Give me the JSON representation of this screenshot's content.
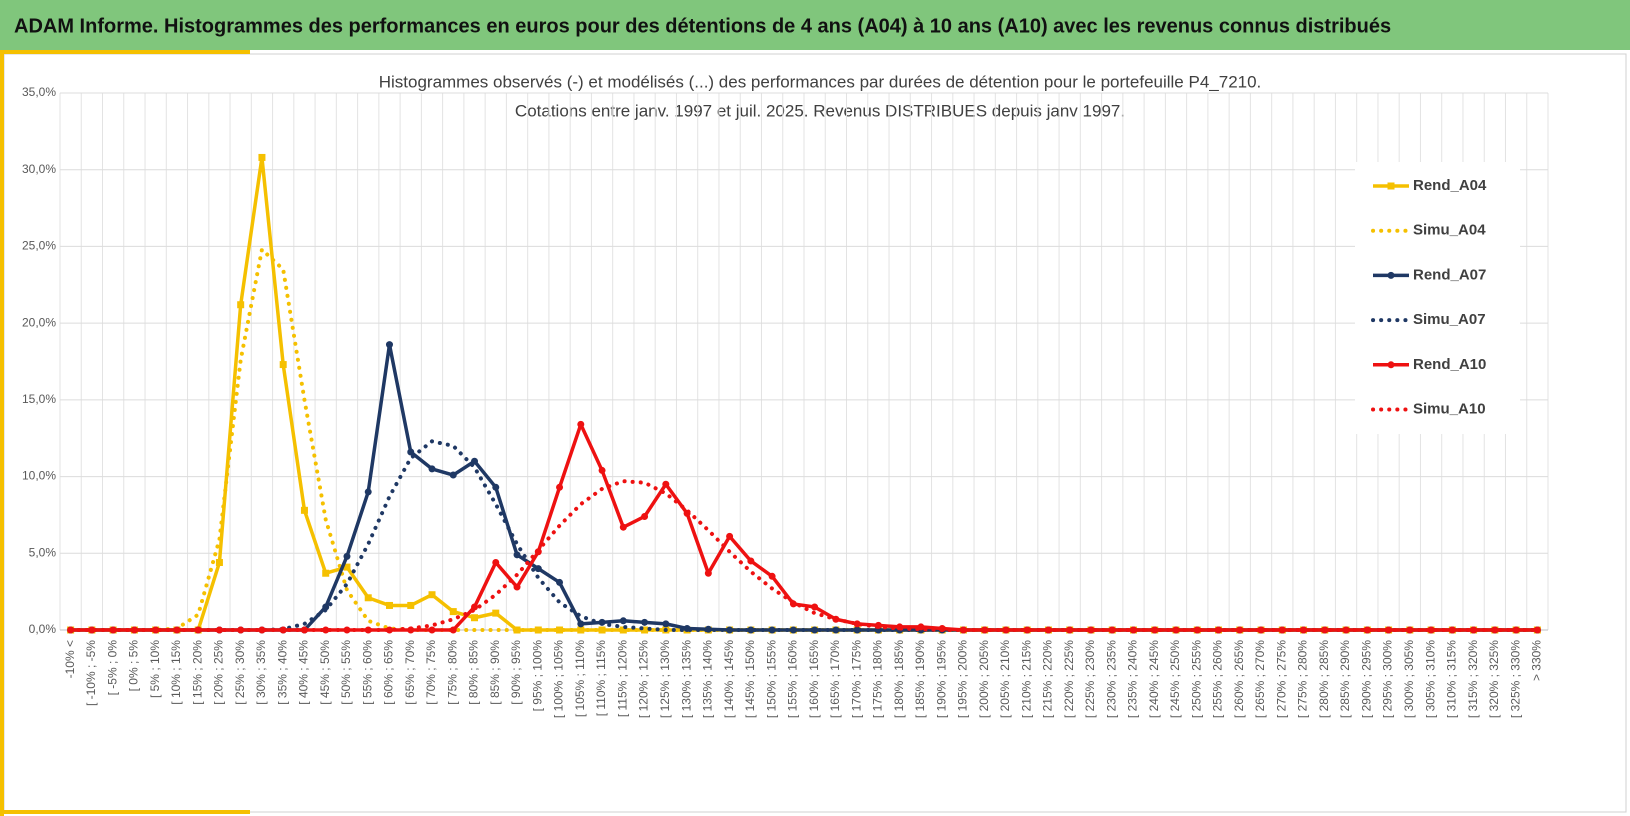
{
  "header": {
    "title": "ADAM Informe. Histogrammes des performances en euros pour des détentions de 4 ans (A04) à 10 ans (A10) avec les revenus connus distribués"
  },
  "chart_data": {
    "type": "line",
    "title": "Histogrammes observés (-) et modélisés (...) des performances par durées de détention pour  le portefeuille P4_7210.",
    "subtitle": "Cotations entre janv. 1997 et juil. 2025. Revenus DISTRIBUES depuis janv 1997.",
    "categories": [
      "-10% <",
      "[ -10% ; -5%",
      "[ -5% ; 0%",
      "[ 0% ; 5%",
      "[ 5% ; 10%",
      "[ 10% ; 15%",
      "[ 15% ; 20%",
      "[ 20% ; 25%",
      "[ 25% ; 30%",
      "[ 30% ; 35%",
      "[ 35% ; 40%",
      "[ 40% ; 45%",
      "[ 45% ; 50%",
      "[ 50% ; 55%",
      "[ 55% ; 60%",
      "[ 60% ; 65%",
      "[ 65% ; 70%",
      "[ 70% ; 75%",
      "[ 75% ; 80%",
      "[ 80% ; 85%",
      "[ 85% ; 90%",
      "[ 90% ; 95%",
      "[ 95% ; 100%",
      "[ 100% ; 105%",
      "[ 105% ; 110%",
      "[ 110% ; 115%",
      "[ 115% ; 120%",
      "[ 120% ; 125%",
      "[ 125% ; 130%",
      "[ 130% ; 135%",
      "[ 135% ; 140%",
      "[ 140% ; 145%",
      "[ 145% ; 150%",
      "[ 150% ; 155%",
      "[ 155% ; 160%",
      "[ 160% ; 165%",
      "[ 165% ; 170%",
      "[ 170% ; 175%",
      "[ 175% ; 180%",
      "[ 180% ; 185%",
      "[ 185% ; 190%",
      "[ 190% ; 195%",
      "[ 195% ; 200%",
      "[ 200% ; 205%",
      "[ 205% ; 210%",
      "[ 210% ; 215%",
      "[ 215% ; 220%",
      "[ 220% ; 225%",
      "[ 225% ; 230%",
      "[ 230% ; 235%",
      "[ 235% ; 240%",
      "[ 240% ; 245%",
      "[ 245% ; 250%",
      "[ 250% ; 255%",
      "[ 255% ; 260%",
      "[ 260% ; 265%",
      "[ 265% ; 270%",
      "[ 270% ; 275%",
      "[ 275% ; 280%",
      "[ 280% ; 285%",
      "[ 285% ; 290%",
      "[ 290% ; 295%",
      "[ 295% ; 300%",
      "[ 300% ; 305%",
      "[ 305% ; 310%",
      "[ 310% ; 315%",
      "[ 315% ; 320%",
      "[ 320% ; 325%",
      "[ 325% ; 330%",
      "> 330%"
    ],
    "series": [
      {
        "name": "Rend_A04",
        "color": "#f5c000",
        "style": "solid",
        "marker": "square",
        "values": [
          0,
          0,
          0,
          0,
          0,
          0,
          0,
          4.4,
          21.2,
          30.8,
          17.3,
          7.8,
          3.7,
          4.1,
          2.1,
          1.6,
          1.6,
          2.3,
          1.2,
          0.8,
          1.1,
          0,
          0,
          0,
          0,
          0,
          0,
          0,
          0,
          0,
          0,
          0,
          0,
          0,
          0,
          0,
          0,
          0,
          0,
          0,
          0,
          0,
          0,
          0,
          0,
          0,
          0,
          0,
          0,
          0,
          0,
          0,
          0,
          0,
          0,
          0,
          0,
          0,
          0,
          0,
          0,
          0,
          0,
          0,
          0,
          0,
          0,
          0,
          0,
          0
        ]
      },
      {
        "name": "Simu_A04",
        "color": "#f5c000",
        "style": "dotted",
        "values": [
          0,
          0,
          0,
          0,
          0,
          0.1,
          1.0,
          5.9,
          17.6,
          24.8,
          23.5,
          15.0,
          7.2,
          2.6,
          0.6,
          0.1,
          0,
          0,
          0,
          0,
          0,
          0,
          0,
          0,
          0,
          0,
          0,
          0,
          0,
          0,
          0,
          0,
          0,
          0,
          0,
          0,
          0,
          0,
          0,
          0,
          0,
          0,
          0,
          0,
          0,
          0,
          0,
          0,
          0,
          0,
          0,
          0,
          0,
          0,
          0,
          0,
          0,
          0,
          0,
          0,
          0,
          0,
          0,
          0,
          0,
          0,
          0,
          0,
          0,
          0
        ]
      },
      {
        "name": "Rend_A07",
        "color": "#1f3864",
        "style": "solid",
        "marker": "circle",
        "values": [
          0,
          0,
          0,
          0,
          0,
          0,
          0,
          0,
          0,
          0,
          0,
          0,
          1.5,
          4.8,
          9.0,
          18.6,
          11.6,
          10.5,
          10.1,
          11.0,
          9.3,
          4.9,
          4.0,
          3.1,
          0.4,
          0.5,
          0.6,
          0.5,
          0.4,
          0.1,
          0.05,
          0,
          0,
          0,
          0,
          0,
          0,
          0,
          0,
          0,
          0,
          0,
          0,
          0,
          0,
          0,
          0,
          0,
          0,
          0,
          0,
          0,
          0,
          0,
          0,
          0,
          0,
          0,
          0,
          0,
          0,
          0,
          0,
          0,
          0,
          0,
          0,
          0,
          0,
          0
        ]
      },
      {
        "name": "Simu_A07",
        "color": "#1f3864",
        "style": "dotted",
        "values": [
          0,
          0,
          0,
          0,
          0,
          0,
          0,
          0,
          0,
          0,
          0.05,
          0.4,
          1.3,
          3.0,
          5.6,
          8.7,
          11.2,
          12.3,
          12.0,
          10.6,
          8.2,
          5.6,
          3.4,
          1.8,
          0.9,
          0.4,
          0.2,
          0.1,
          0,
          0,
          0,
          0,
          0,
          0,
          0,
          0,
          0,
          0,
          0,
          0,
          0,
          0,
          0,
          0,
          0,
          0,
          0,
          0,
          0,
          0,
          0,
          0,
          0,
          0,
          0,
          0,
          0,
          0,
          0,
          0,
          0,
          0,
          0,
          0,
          0,
          0,
          0,
          0,
          0,
          0
        ]
      },
      {
        "name": "Rend_A10",
        "color": "#ee1111",
        "style": "solid",
        "marker": "circle",
        "values": [
          0,
          0,
          0,
          0,
          0,
          0,
          0,
          0,
          0,
          0,
          0,
          0,
          0,
          0,
          0,
          0,
          0,
          0,
          0,
          1.5,
          4.4,
          2.8,
          5.1,
          9.3,
          13.4,
          10.4,
          6.7,
          7.4,
          9.5,
          7.6,
          3.7,
          6.1,
          4.5,
          3.5,
          1.7,
          1.5,
          0.7,
          0.4,
          0.3,
          0.2,
          0.2,
          0.1,
          0,
          0,
          0,
          0,
          0,
          0,
          0,
          0,
          0,
          0,
          0,
          0,
          0,
          0,
          0,
          0,
          0,
          0,
          0,
          0,
          0,
          0,
          0,
          0,
          0,
          0,
          0,
          0
        ]
      },
      {
        "name": "Simu_A10",
        "color": "#ee1111",
        "style": "dotted",
        "values": [
          0,
          0,
          0,
          0,
          0,
          0,
          0,
          0,
          0,
          0,
          0,
          0,
          0,
          0,
          0,
          0,
          0.1,
          0.3,
          0.7,
          1.3,
          2.3,
          3.6,
          5.2,
          6.8,
          8.2,
          9.2,
          9.7,
          9.6,
          8.9,
          7.8,
          6.5,
          5.1,
          3.8,
          2.7,
          1.8,
          1.1,
          0.7,
          0.4,
          0.2,
          0.1,
          0.05,
          0,
          0,
          0,
          0,
          0,
          0,
          0,
          0,
          0,
          0,
          0,
          0,
          0,
          0,
          0,
          0,
          0,
          0,
          0,
          0,
          0,
          0,
          0,
          0,
          0,
          0,
          0,
          0,
          0
        ]
      }
    ],
    "ylim": [
      0,
      35
    ],
    "yticks": [
      {
        "value": 0,
        "label": "0,0%"
      },
      {
        "value": 5,
        "label": "5,0%"
      },
      {
        "value": 10,
        "label": "10,0%"
      },
      {
        "value": 15,
        "label": "15,0%"
      },
      {
        "value": 20,
        "label": "20,0%"
      },
      {
        "value": 25,
        "label": "25,0%"
      },
      {
        "value": 30,
        "label": "30,0%"
      },
      {
        "value": 35,
        "label": "35,0%"
      }
    ],
    "grid": true,
    "legend": "right"
  }
}
